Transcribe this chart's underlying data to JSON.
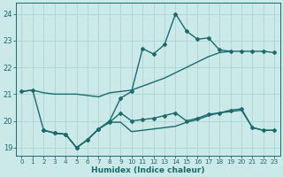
{
  "xlabel": "Humidex (Indice chaleur)",
  "xlim": [
    -0.5,
    23.5
  ],
  "ylim": [
    18.7,
    24.4
  ],
  "yticks": [
    19,
    20,
    21,
    22,
    23,
    24
  ],
  "xticks": [
    0,
    1,
    2,
    3,
    4,
    5,
    6,
    7,
    8,
    9,
    10,
    11,
    12,
    13,
    14,
    15,
    16,
    17,
    18,
    19,
    20,
    21,
    22,
    23
  ],
  "background_color": "#cce9e9",
  "line_color": "#1a6b6b",
  "grid_color": "#aed4d4",
  "lines": [
    {
      "x": [
        0,
        1,
        2,
        3,
        4,
        5,
        6,
        7,
        8,
        9,
        10,
        11,
        12,
        13,
        14,
        15,
        16,
        17,
        18,
        19
      ],
      "y": [
        21.1,
        21.15,
        21.05,
        21.0,
        21.0,
        21.0,
        20.95,
        20.9,
        21.05,
        21.1,
        21.15,
        21.3,
        21.45,
        21.6,
        21.8,
        22.0,
        22.2,
        22.4,
        22.55,
        22.6
      ],
      "markers": false,
      "linewidth": 1.0
    },
    {
      "x": [
        0,
        1,
        2,
        3,
        4,
        5,
        6,
        7,
        8,
        9,
        10,
        11,
        12,
        13,
        14,
        15,
        16,
        17,
        18,
        19,
        20,
        21,
        22,
        23
      ],
      "y": [
        21.1,
        21.15,
        19.65,
        19.55,
        19.5,
        19.0,
        19.3,
        19.7,
        20.0,
        20.85,
        21.1,
        22.7,
        22.5,
        22.85,
        24.0,
        23.35,
        23.05,
        23.1,
        22.65,
        22.6,
        22.6,
        22.6,
        22.6,
        22.55
      ],
      "markers": true,
      "linewidth": 1.0
    },
    {
      "x": [
        2,
        3,
        4,
        5,
        6,
        7,
        8,
        9,
        10,
        11,
        12,
        13,
        14,
        15,
        16,
        17,
        18,
        19,
        20,
        21,
        22,
        23
      ],
      "y": [
        19.65,
        19.55,
        19.5,
        19.0,
        19.3,
        19.7,
        19.95,
        19.95,
        19.6,
        19.65,
        19.7,
        19.75,
        19.8,
        19.95,
        20.05,
        20.2,
        20.3,
        20.35,
        20.4,
        19.75,
        19.65,
        19.65
      ],
      "markers": false,
      "linewidth": 1.0
    },
    {
      "x": [
        2,
        3,
        4,
        5,
        6,
        7,
        8,
        9,
        10,
        11,
        12,
        13,
        14,
        15,
        16,
        17,
        18,
        19,
        20,
        21,
        22,
        23
      ],
      "y": [
        19.65,
        19.55,
        19.5,
        19.0,
        19.3,
        19.7,
        19.95,
        20.3,
        20.0,
        20.05,
        20.1,
        20.2,
        20.3,
        20.0,
        20.1,
        20.25,
        20.3,
        20.4,
        20.45,
        19.75,
        19.65,
        19.65
      ],
      "markers": true,
      "linewidth": 1.0
    }
  ]
}
